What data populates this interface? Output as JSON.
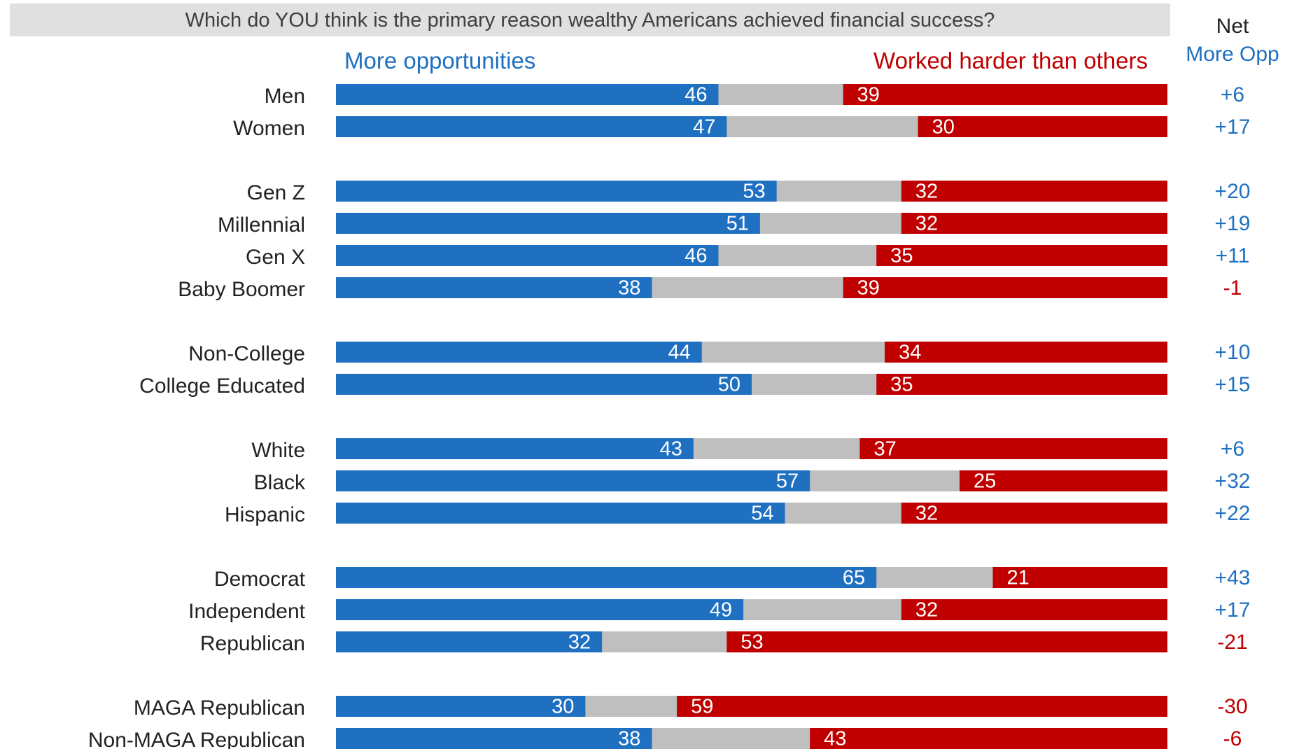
{
  "chart_data": {
    "type": "bar",
    "stacked": true,
    "orientation": "horizontal",
    "title": "Which do YOU think is the primary reason wealthy Americans achieved financial success?",
    "legend": {
      "left": "More opportunities",
      "right": "Worked harder than others"
    },
    "net_header": [
      "Net",
      "More Opp"
    ],
    "groups": [
      [
        {
          "label": "Men",
          "more": 46,
          "worked": 39,
          "net": "+6"
        },
        {
          "label": "Women",
          "more": 47,
          "worked": 30,
          "net": "+17"
        }
      ],
      [
        {
          "label": "Gen Z",
          "more": 53,
          "worked": 32,
          "net": "+20"
        },
        {
          "label": "Millennial",
          "more": 51,
          "worked": 32,
          "net": "+19"
        },
        {
          "label": "Gen X",
          "more": 46,
          "worked": 35,
          "net": "+11"
        },
        {
          "label": "Baby Boomer",
          "more": 38,
          "worked": 39,
          "net": "-1"
        }
      ],
      [
        {
          "label": "Non-College",
          "more": 44,
          "worked": 34,
          "net": "+10"
        },
        {
          "label": "College Educated",
          "more": 50,
          "worked": 35,
          "net": "+15"
        }
      ],
      [
        {
          "label": "White",
          "more": 43,
          "worked": 37,
          "net": "+6"
        },
        {
          "label": "Black",
          "more": 57,
          "worked": 25,
          "net": "+32"
        },
        {
          "label": "Hispanic",
          "more": 54,
          "worked": 32,
          "net": "+22"
        }
      ],
      [
        {
          "label": "Democrat",
          "more": 65,
          "worked": 21,
          "net": "+43"
        },
        {
          "label": "Independent",
          "more": 49,
          "worked": 32,
          "net": "+17"
        },
        {
          "label": "Republican",
          "more": 32,
          "worked": 53,
          "net": "-21"
        }
      ],
      [
        {
          "label": "MAGA Republican",
          "more": 30,
          "worked": 59,
          "net": "-30"
        },
        {
          "label": "Non-MAGA Republican",
          "more": 38,
          "worked": 43,
          "net": "-6"
        }
      ]
    ],
    "colors": {
      "more": "#1f70c1",
      "worked": "#c00000",
      "neither": "#bfbfbf",
      "label": "#222222"
    }
  }
}
